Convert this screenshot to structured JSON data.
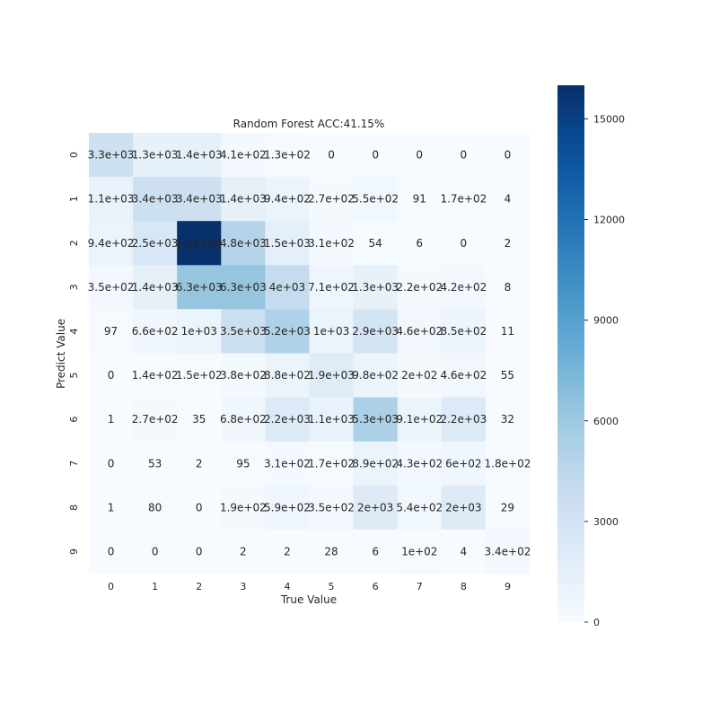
{
  "chart_data": {
    "type": "heatmap",
    "title": "Random Forest ACC:41.15%",
    "xlabel": "True Value",
    "ylabel": "Predict Value",
    "x_categories": [
      "0",
      "1",
      "2",
      "3",
      "4",
      "5",
      "6",
      "7",
      "8",
      "9"
    ],
    "y_categories": [
      "0",
      "1",
      "2",
      "3",
      "4",
      "5",
      "6",
      "7",
      "8",
      "9"
    ],
    "values": [
      [
        3300,
        1300,
        1400,
        410,
        130,
        0,
        0,
        0,
        0,
        0
      ],
      [
        1100,
        3400,
        3400,
        1400,
        940,
        270,
        550,
        91,
        170,
        4
      ],
      [
        940,
        2500,
        16000,
        4800,
        1500,
        310,
        54,
        6,
        0,
        2
      ],
      [
        350,
        1400,
        6300,
        6300,
        4000,
        710,
        1300,
        220,
        420,
        8
      ],
      [
        97,
        660,
        1000,
        3500,
        5200,
        1000,
        2900,
        460,
        850,
        11
      ],
      [
        0,
        140,
        150,
        380,
        880,
        1900,
        980,
        200,
        460,
        55
      ],
      [
        1,
        270,
        35,
        680,
        2200,
        1100,
        5300,
        910,
        2200,
        32
      ],
      [
        0,
        53,
        2,
        95,
        310,
        170,
        890,
        430,
        600,
        180
      ],
      [
        1,
        80,
        0,
        190,
        590,
        350,
        2000,
        540,
        2000,
        29
      ],
      [
        0,
        0,
        0,
        2,
        2,
        28,
        6,
        100,
        4,
        340
      ]
    ],
    "annotations": [
      [
        "3.3e+03",
        "1.3e+03",
        "1.4e+03",
        "4.1e+02",
        "1.3e+02",
        "0",
        "0",
        "0",
        "0",
        "0"
      ],
      [
        "1.1e+03",
        "3.4e+03",
        "3.4e+03",
        "1.4e+03",
        "9.4e+02",
        "2.7e+02",
        "5.5e+02",
        "91",
        "1.7e+02",
        "4"
      ],
      [
        "9.4e+02",
        "2.5e+03",
        "1.6e+04",
        "4.8e+03",
        "1.5e+03",
        "3.1e+02",
        "54",
        "6",
        "0",
        "2"
      ],
      [
        "3.5e+02",
        "1.4e+03",
        "6.3e+03",
        "6.3e+03",
        "4e+03",
        "7.1e+02",
        "1.3e+03",
        "2.2e+02",
        "4.2e+02",
        "8"
      ],
      [
        "97",
        "6.6e+02",
        "1e+03",
        "3.5e+03",
        "5.2e+03",
        "1e+03",
        "2.9e+03",
        "4.6e+02",
        "8.5e+02",
        "11"
      ],
      [
        "0",
        "1.4e+02",
        "1.5e+02",
        "3.8e+02",
        "8.8e+02",
        "1.9e+03",
        "9.8e+02",
        "2e+02",
        "4.6e+02",
        "55"
      ],
      [
        "1",
        "2.7e+02",
        "35",
        "6.8e+02",
        "2.2e+03",
        "1.1e+03",
        "5.3e+03",
        "9.1e+02",
        "2.2e+03",
        "32"
      ],
      [
        "0",
        "53",
        "2",
        "95",
        "3.1e+02",
        "1.7e+02",
        "8.9e+02",
        "4.3e+02",
        "6e+02",
        "1.8e+02"
      ],
      [
        "1",
        "80",
        "0",
        "1.9e+02",
        "5.9e+02",
        "3.5e+02",
        "2e+03",
        "5.4e+02",
        "2e+03",
        "29"
      ],
      [
        "0",
        "0",
        "0",
        "2",
        "2",
        "28",
        "6",
        "1e+02",
        "4",
        "3.4e+02"
      ]
    ],
    "colormap": "Blues",
    "colorbar": {
      "range": [
        0,
        16000
      ],
      "ticks": [
        0,
        3000,
        6000,
        9000,
        12000,
        15000
      ],
      "tick_labels": [
        "0",
        "3000",
        "6000",
        "9000",
        "12000",
        "15000"
      ]
    },
    "colors": {
      "low": "#f7fbff",
      "high": "#08306b",
      "text_dark": "#262626",
      "text_light": "#ffffff"
    }
  }
}
